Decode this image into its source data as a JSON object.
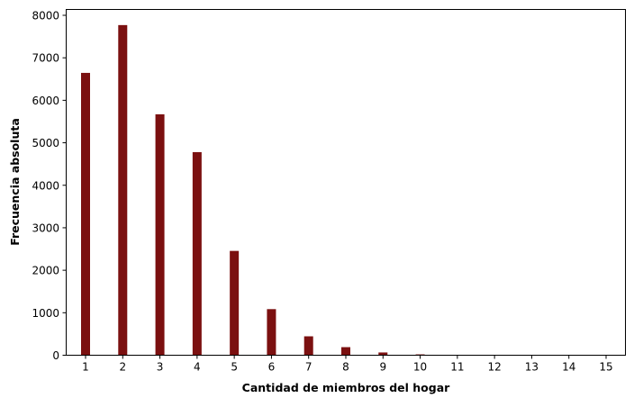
{
  "chart_data": {
    "type": "bar",
    "xlabel": "Cantidad de miembros del hogar",
    "ylabel": "Frecuencia absoluta",
    "categories": [
      "1",
      "2",
      "3",
      "4",
      "5",
      "6",
      "7",
      "8",
      "9",
      "10",
      "11",
      "12",
      "13",
      "14",
      "15"
    ],
    "values": [
      6645,
      7770,
      5670,
      4780,
      2455,
      1085,
      445,
      190,
      65,
      20,
      10,
      8,
      2,
      1,
      1
    ],
    "ylim": [
      0,
      8000
    ],
    "yticks": [
      "0",
      "1000",
      "2000",
      "3000",
      "4000",
      "5000",
      "6000",
      "7000",
      "8000"
    ],
    "grid": false,
    "bar_color": "#7b1010"
  }
}
